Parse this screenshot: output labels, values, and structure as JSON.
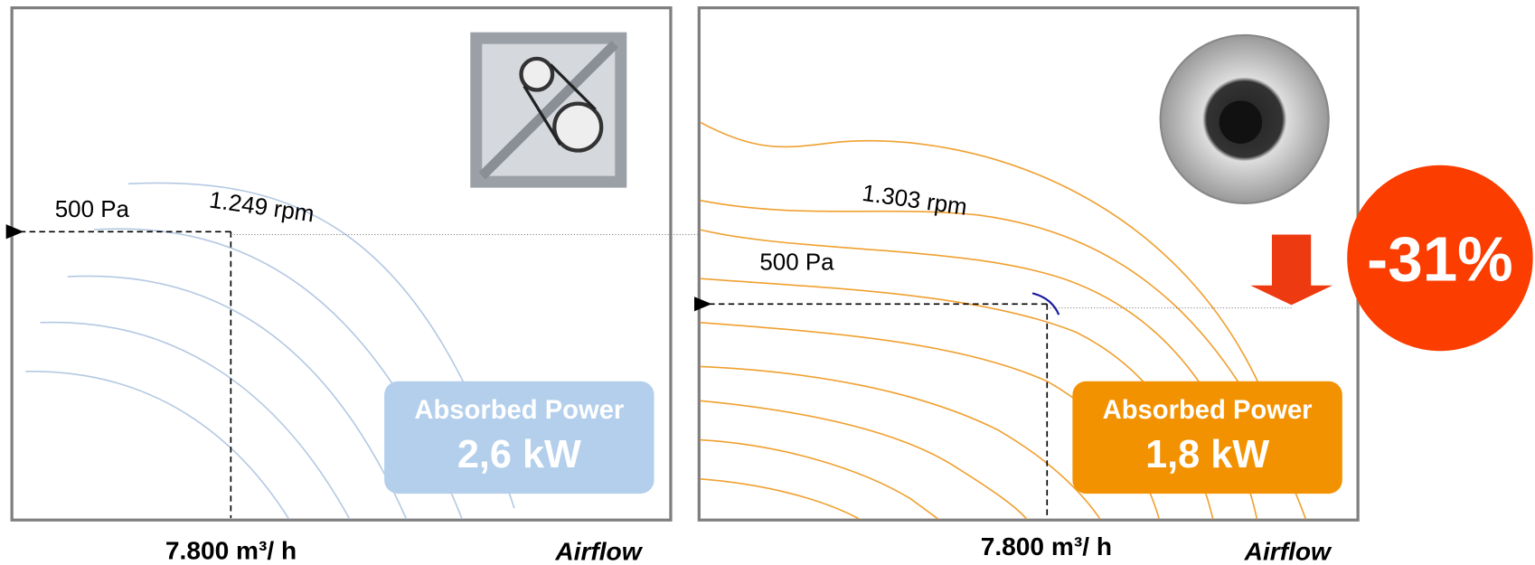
{
  "left_panel": {
    "pressure_label": "500 Pa",
    "speed_label": "1.249 rpm",
    "power_label": "Absorbed Power",
    "power_value": "2,6 kW",
    "flow_label": "7.800 m³/ h",
    "axis_label": "Airflow"
  },
  "right_panel": {
    "pressure_label": "500 Pa",
    "speed_label": "1.303 rpm",
    "power_label": "Absorbed Power",
    "power_value": "1,8 kW",
    "flow_label": "7.800 m³/ h",
    "axis_label": "Airflow"
  },
  "reduction": "-31%"
}
